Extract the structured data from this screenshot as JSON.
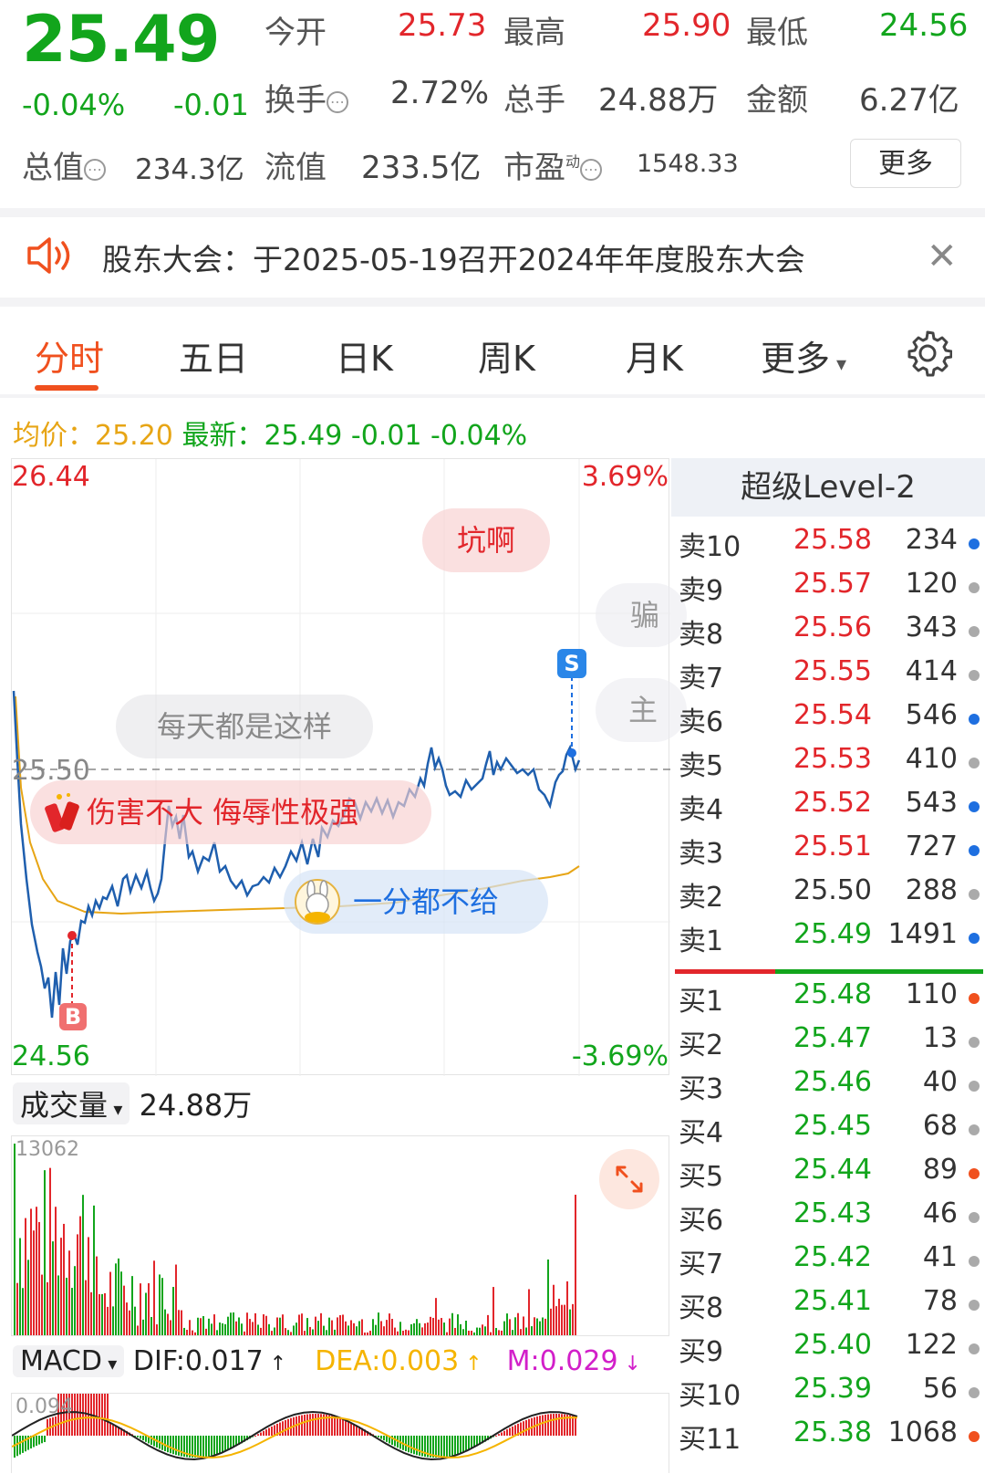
{
  "quote": {
    "price": "25.49",
    "change_pct": "-0.04%",
    "change": "-0.01",
    "open_label": "今开",
    "open": "25.73",
    "high_label": "最高",
    "high": "25.90",
    "low_label": "最低",
    "low": "24.56",
    "turnover_label": "换手",
    "turnover": "2.72%",
    "volume_label": "总手",
    "volume": "24.88万",
    "amount_label": "金额",
    "amount": "6.27亿",
    "mktcap_label": "总值",
    "mktcap": "234.3亿",
    "float_label": "流值",
    "float": "233.5亿",
    "pe_label": "市盈",
    "pe_sup": "动",
    "pe": "1548.33",
    "more_label": "更多"
  },
  "notice": {
    "text": "股东大会：于2025-05-19召开2024年年度股东大会"
  },
  "tabs": [
    "分时",
    "五日",
    "日K",
    "周K",
    "月K",
    "更多"
  ],
  "avg_row": {
    "avg_label": "均价：",
    "avg": "25.20",
    "new_label": "最新：",
    "new": "25.49",
    "chg": "-0.01",
    "pct": "-0.04%"
  },
  "chart": {
    "top_price": "26.44",
    "top_pct": "3.69%",
    "bottom_price": "24.56",
    "bottom_pct": "-3.69%",
    "ref_price": "25.50",
    "marker_buy": "B",
    "marker_sell": "S",
    "bubbles": [
      "坑啊",
      "每天都是这样",
      "伤害不大 侮辱性极强",
      "一分都不给",
      "骗",
      "主"
    ]
  },
  "volume": {
    "label": "成交量",
    "value": "24.88万",
    "max": "13062"
  },
  "macd": {
    "label": "MACD",
    "dif": "DIF:0.017",
    "dea": "DEA:0.003",
    "m": "M:0.029",
    "max": "0.094"
  },
  "orderbook": {
    "title": "超级Level-2",
    "sells": [
      {
        "name": "卖10",
        "price": "25.58",
        "qty": "234",
        "color": "#e2262b",
        "dot": "#1e6fe0"
      },
      {
        "name": "卖9",
        "price": "25.57",
        "qty": "120",
        "color": "#e2262b",
        "dot": "#aaaaaa"
      },
      {
        "name": "卖8",
        "price": "25.56",
        "qty": "343",
        "color": "#e2262b",
        "dot": "#aaaaaa"
      },
      {
        "name": "卖7",
        "price": "25.55",
        "qty": "414",
        "color": "#e2262b",
        "dot": "#aaaaaa"
      },
      {
        "name": "卖6",
        "price": "25.54",
        "qty": "546",
        "color": "#e2262b",
        "dot": "#1e6fe0"
      },
      {
        "name": "卖5",
        "price": "25.53",
        "qty": "410",
        "color": "#e2262b",
        "dot": "#aaaaaa"
      },
      {
        "name": "卖4",
        "price": "25.52",
        "qty": "543",
        "color": "#e2262b",
        "dot": "#1e6fe0"
      },
      {
        "name": "卖3",
        "price": "25.51",
        "qty": "727",
        "color": "#e2262b",
        "dot": "#1e6fe0"
      },
      {
        "name": "卖2",
        "price": "25.50",
        "qty": "288",
        "color": "#333333",
        "dot": "#aaaaaa"
      },
      {
        "name": "卖1",
        "price": "25.49",
        "qty": "1491",
        "color": "#12a51c",
        "dot": "#1e6fe0"
      }
    ],
    "buys": [
      {
        "name": "买1",
        "price": "25.48",
        "qty": "110",
        "color": "#12a51c",
        "dot": "#f0501e"
      },
      {
        "name": "买2",
        "price": "25.47",
        "qty": "13",
        "color": "#12a51c",
        "dot": "#aaaaaa"
      },
      {
        "name": "买3",
        "price": "25.46",
        "qty": "40",
        "color": "#12a51c",
        "dot": "#aaaaaa"
      },
      {
        "name": "买4",
        "price": "25.45",
        "qty": "68",
        "color": "#12a51c",
        "dot": "#aaaaaa"
      },
      {
        "name": "买5",
        "price": "25.44",
        "qty": "89",
        "color": "#12a51c",
        "dot": "#f0501e"
      },
      {
        "name": "买6",
        "price": "25.43",
        "qty": "46",
        "color": "#12a51c",
        "dot": "#aaaaaa"
      },
      {
        "name": "买7",
        "price": "25.42",
        "qty": "41",
        "color": "#12a51c",
        "dot": "#aaaaaa"
      },
      {
        "name": "买8",
        "price": "25.41",
        "qty": "78",
        "color": "#12a51c",
        "dot": "#aaaaaa"
      },
      {
        "name": "买9",
        "price": "25.40",
        "qty": "122",
        "color": "#12a51c",
        "dot": "#aaaaaa"
      },
      {
        "name": "买10",
        "price": "25.39",
        "qty": "56",
        "color": "#12a51c",
        "dot": "#aaaaaa"
      },
      {
        "name": "买11",
        "price": "25.38",
        "qty": "1068",
        "color": "#12a51c",
        "dot": "#f0501e"
      }
    ]
  },
  "icons": [
    "speaker-icon",
    "close-icon",
    "gear-icon",
    "expand-icon",
    "firecracker-icon",
    "rabbit-avatar-icon",
    "question-icon",
    "dropdown-arrow-icon"
  ]
}
